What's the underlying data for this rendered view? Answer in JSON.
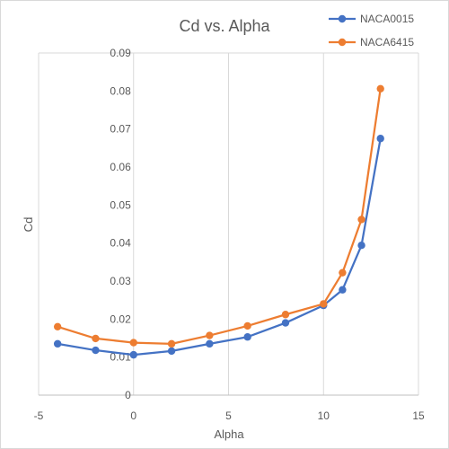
{
  "chart_data": {
    "type": "line",
    "title": "Cd vs. Alpha",
    "xlabel": "Alpha",
    "ylabel": "Cd",
    "xlim": [
      -5,
      15
    ],
    "ylim": [
      0,
      0.09
    ],
    "grid": true,
    "legend_position": "top-right",
    "x_ticks": [
      "-5",
      "0",
      "5",
      "10",
      "15"
    ],
    "y_ticks": [
      "0",
      "0.01",
      "0.02",
      "0.03",
      "0.04",
      "0.05",
      "0.06",
      "0.07",
      "0.08",
      "0.09"
    ],
    "series": [
      {
        "name": "NACA0015",
        "color": "#4472c4",
        "x": [
          -4,
          -2,
          0,
          2,
          4,
          6,
          8,
          10,
          11,
          12,
          13
        ],
        "y": [
          0.0135,
          0.0118,
          0.0106,
          0.0116,
          0.0135,
          0.0153,
          0.019,
          0.0236,
          0.0277,
          0.0394,
          0.0675
        ]
      },
      {
        "name": "NACA6415",
        "color": "#ed7d31",
        "x": [
          -4,
          -2,
          0,
          2,
          4,
          6,
          8,
          10,
          11,
          12,
          13
        ],
        "y": [
          0.018,
          0.0149,
          0.0138,
          0.0135,
          0.0157,
          0.0182,
          0.0212,
          0.024,
          0.0322,
          0.0462,
          0.0806
        ]
      }
    ]
  }
}
